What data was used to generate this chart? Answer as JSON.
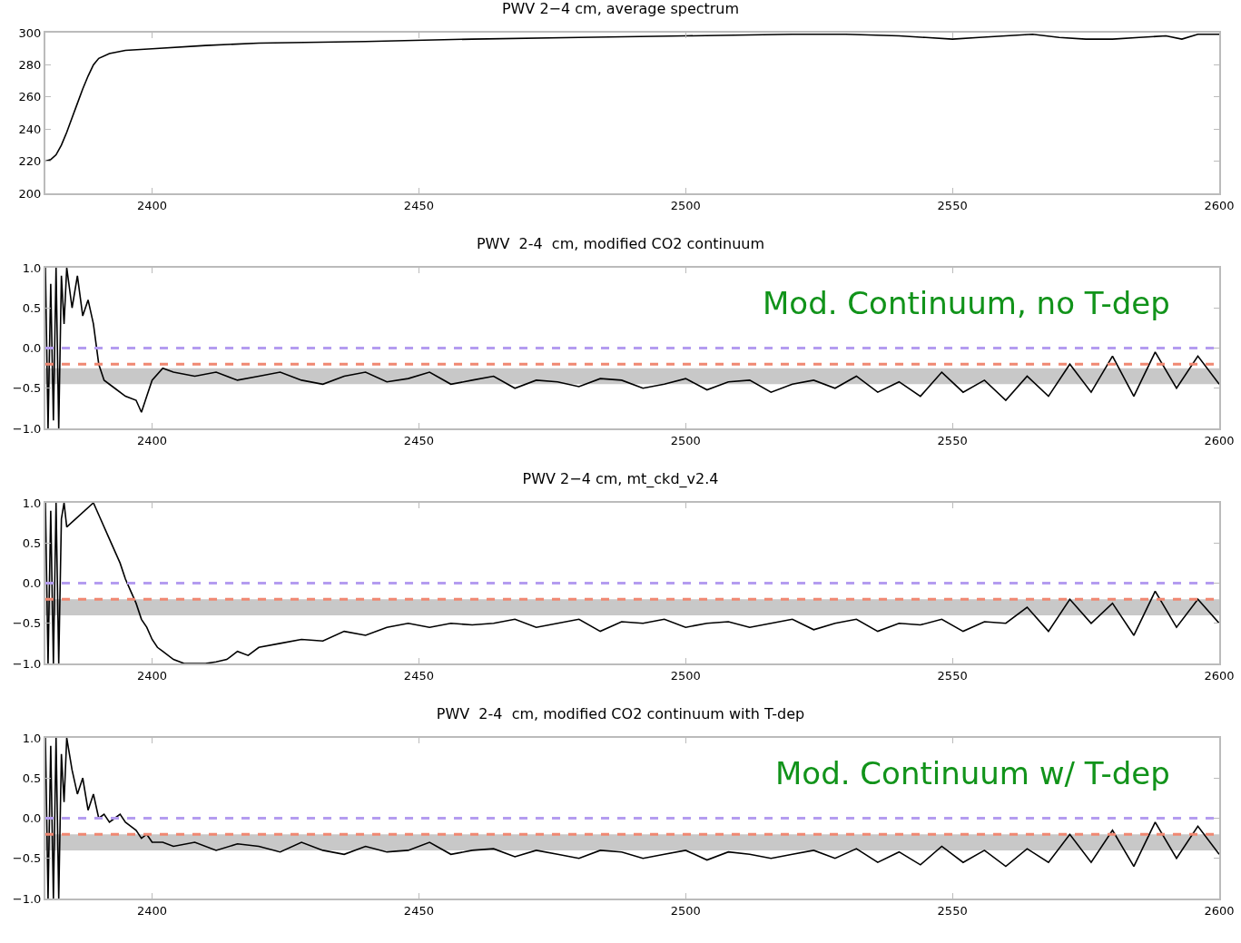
{
  "chart_data": [
    {
      "type": "line",
      "title": "PWV 2−4 cm, average spectrum",
      "x": [
        2380,
        2381,
        2382,
        2383,
        2384,
        2385,
        2386,
        2387,
        2388,
        2389,
        2390,
        2392,
        2395,
        2400,
        2410,
        2420,
        2440,
        2460,
        2480,
        2500,
        2520,
        2530,
        2540,
        2545,
        2550,
        2555,
        2560,
        2565,
        2570,
        2575,
        2580,
        2585,
        2590,
        2593,
        2596,
        2600
      ],
      "series": [
        {
          "color": "#000000",
          "values": [
            220,
            221,
            224,
            230,
            238,
            247,
            256,
            265,
            273,
            280,
            284,
            287,
            289,
            290,
            292,
            293.5,
            294.5,
            296,
            297,
            298,
            299,
            299,
            298,
            297,
            296,
            297,
            298,
            299,
            297,
            296,
            296,
            297,
            298,
            296,
            299,
            299
          ]
        }
      ],
      "xlim": [
        2380,
        2600
      ],
      "xticks": [
        2400,
        2450,
        2500,
        2550,
        2600
      ],
      "ylim": [
        200,
        300
      ],
      "yticks": [
        200,
        220,
        240,
        260,
        280,
        300
      ],
      "grid": false,
      "marker": "none",
      "line_style": "solid"
    },
    {
      "type": "line",
      "title": "PWV  2-4  cm, modified CO2 continuum",
      "annotations": [
        "Mod. Continuum, no T-dep"
      ],
      "x": [
        2380,
        2380.5,
        2381,
        2381.5,
        2382,
        2382.5,
        2383,
        2383.5,
        2384,
        2385,
        2386,
        2387,
        2388,
        2389,
        2390,
        2391,
        2393,
        2395,
        2397,
        2398,
        2399,
        2400,
        2402,
        2404,
        2408,
        2412,
        2416,
        2420,
        2424,
        2428,
        2432,
        2436,
        2440,
        2444,
        2448,
        2452,
        2456,
        2460,
        2464,
        2468,
        2472,
        2476,
        2480,
        2484,
        2488,
        2492,
        2496,
        2500,
        2504,
        2508,
        2512,
        2516,
        2520,
        2524,
        2528,
        2532,
        2536,
        2540,
        2544,
        2548,
        2552,
        2556,
        2560,
        2564,
        2568,
        2572,
        2576,
        2580,
        2584,
        2588,
        2592,
        2596,
        2600
      ],
      "series": [
        {
          "color": "#000000",
          "values": [
            1,
            -1,
            0.8,
            -0.9,
            1,
            -1,
            0.9,
            0.3,
            1,
            0.5,
            0.9,
            0.4,
            0.6,
            0.3,
            -0.2,
            -0.4,
            -0.5,
            -0.6,
            -0.65,
            -0.8,
            -0.6,
            -0.4,
            -0.25,
            -0.3,
            -0.35,
            -0.3,
            -0.4,
            -0.35,
            -0.3,
            -0.4,
            -0.45,
            -0.35,
            -0.3,
            -0.42,
            -0.38,
            -0.3,
            -0.45,
            -0.4,
            -0.35,
            -0.5,
            -0.4,
            -0.42,
            -0.48,
            -0.38,
            -0.4,
            -0.5,
            -0.45,
            -0.38,
            -0.52,
            -0.42,
            -0.4,
            -0.55,
            -0.45,
            -0.4,
            -0.5,
            -0.35,
            -0.55,
            -0.42,
            -0.6,
            -0.3,
            -0.55,
            -0.4,
            -0.65,
            -0.35,
            -0.6,
            -0.2,
            -0.55,
            -0.1,
            -0.6,
            -0.05,
            -0.5,
            -0.1,
            -0.45
          ]
        }
      ],
      "ref_lines": [
        {
          "axis": "y",
          "value": 0,
          "color": "#b49cf0",
          "line_style": "dashed"
        },
        {
          "axis": "y",
          "value": -0.2,
          "color": "#f08872",
          "line_style": "dashed"
        }
      ],
      "bands": [
        {
          "axis": "y",
          "from": -0.45,
          "to": -0.25,
          "color": "#c8c8c8"
        }
      ],
      "xlim": [
        2380,
        2600
      ],
      "xticks": [
        2400,
        2450,
        2500,
        2550,
        2600
      ],
      "ylim": [
        -1,
        1
      ],
      "yticks": [
        {
          "value": -1,
          "label": "−1.0"
        },
        {
          "value": -0.5,
          "label": "−0.5"
        },
        {
          "value": 0,
          "label": "0.0"
        },
        {
          "value": 0.5,
          "label": "0.5"
        },
        {
          "value": 1,
          "label": "1.0"
        }
      ],
      "grid": false,
      "marker": "none",
      "line_style": "solid"
    },
    {
      "type": "line",
      "title": "PWV 2−4 cm, mt_ckd_v2.4",
      "x": [
        2380,
        2380.5,
        2381,
        2381.5,
        2382,
        2382.5,
        2383,
        2383.5,
        2384,
        2389,
        2390,
        2392,
        2394,
        2395,
        2396,
        2397,
        2398,
        2399,
        2400,
        2401,
        2402,
        2404,
        2406,
        2408,
        2410,
        2412,
        2414,
        2416,
        2418,
        2420,
        2424,
        2428,
        2432,
        2436,
        2440,
        2444,
        2448,
        2452,
        2456,
        2460,
        2464,
        2468,
        2472,
        2476,
        2480,
        2484,
        2488,
        2492,
        2496,
        2500,
        2504,
        2508,
        2512,
        2516,
        2520,
        2524,
        2528,
        2532,
        2536,
        2540,
        2544,
        2548,
        2552,
        2556,
        2560,
        2564,
        2568,
        2572,
        2576,
        2580,
        2584,
        2588,
        2592,
        2596,
        2600
      ],
      "series": [
        {
          "color": "#000000",
          "values": [
            1,
            -1,
            0.9,
            -1,
            1,
            -1,
            0.8,
            1,
            0.7,
            1,
            0.85,
            0.55,
            0.25,
            0.05,
            -0.1,
            -0.25,
            -0.45,
            -0.55,
            -0.7,
            -0.8,
            -0.85,
            -0.95,
            -1,
            -1,
            -1,
            -0.98,
            -0.95,
            -0.85,
            -0.9,
            -0.8,
            -0.75,
            -0.7,
            -0.72,
            -0.6,
            -0.65,
            -0.55,
            -0.5,
            -0.55,
            -0.5,
            -0.52,
            -0.5,
            -0.45,
            -0.55,
            -0.5,
            -0.45,
            -0.6,
            -0.48,
            -0.5,
            -0.45,
            -0.55,
            -0.5,
            -0.48,
            -0.55,
            -0.5,
            -0.45,
            -0.58,
            -0.5,
            -0.45,
            -0.6,
            -0.5,
            -0.52,
            -0.45,
            -0.6,
            -0.48,
            -0.5,
            -0.3,
            -0.6,
            -0.2,
            -0.5,
            -0.25,
            -0.65,
            -0.1,
            -0.55,
            -0.2,
            -0.5
          ]
        }
      ],
      "ref_lines": [
        {
          "axis": "y",
          "value": 0,
          "color": "#b49cf0",
          "line_style": "dashed"
        },
        {
          "axis": "y",
          "value": -0.2,
          "color": "#f08872",
          "line_style": "dashed"
        }
      ],
      "bands": [
        {
          "axis": "y",
          "from": -0.4,
          "to": -0.2,
          "color": "#c8c8c8"
        }
      ],
      "xlim": [
        2380,
        2600
      ],
      "xticks": [
        2400,
        2450,
        2500,
        2550,
        2600
      ],
      "ylim": [
        -1,
        1
      ],
      "yticks": [
        {
          "value": -1,
          "label": "−1.0"
        },
        {
          "value": -0.5,
          "label": "−0.5"
        },
        {
          "value": 0,
          "label": "0.0"
        },
        {
          "value": 0.5,
          "label": "0.5"
        },
        {
          "value": 1,
          "label": "1.0"
        }
      ],
      "grid": false,
      "marker": "none",
      "line_style": "solid"
    },
    {
      "type": "line",
      "title": "PWV  2-4  cm, modified CO2 continuum with T-dep",
      "annotations": [
        "Mod. Continuum w/ T-dep"
      ],
      "x": [
        2380,
        2380.5,
        2381,
        2381.5,
        2382,
        2382.5,
        2383,
        2383.5,
        2384,
        2385,
        2386,
        2387,
        2388,
        2389,
        2390,
        2391,
        2392,
        2393,
        2394,
        2395,
        2396,
        2397,
        2398,
        2399,
        2400,
        2402,
        2404,
        2408,
        2412,
        2416,
        2420,
        2424,
        2428,
        2432,
        2436,
        2440,
        2444,
        2448,
        2452,
        2456,
        2460,
        2464,
        2468,
        2472,
        2476,
        2480,
        2484,
        2488,
        2492,
        2496,
        2500,
        2504,
        2508,
        2512,
        2516,
        2520,
        2524,
        2528,
        2532,
        2536,
        2540,
        2544,
        2548,
        2552,
        2556,
        2560,
        2564,
        2568,
        2572,
        2576,
        2580,
        2584,
        2588,
        2592,
        2596,
        2600
      ],
      "series": [
        {
          "color": "#000000",
          "values": [
            1,
            -1,
            0.9,
            -1,
            1,
            -1,
            0.8,
            0.2,
            1,
            0.6,
            0.3,
            0.5,
            0.1,
            0.3,
            0,
            0.05,
            -0.05,
            0,
            0.05,
            -0.05,
            -0.1,
            -0.15,
            -0.25,
            -0.2,
            -0.3,
            -0.3,
            -0.35,
            -0.3,
            -0.4,
            -0.32,
            -0.35,
            -0.42,
            -0.3,
            -0.4,
            -0.45,
            -0.35,
            -0.42,
            -0.4,
            -0.3,
            -0.45,
            -0.4,
            -0.38,
            -0.48,
            -0.4,
            -0.45,
            -0.5,
            -0.4,
            -0.42,
            -0.5,
            -0.45,
            -0.4,
            -0.52,
            -0.42,
            -0.45,
            -0.5,
            -0.45,
            -0.4,
            -0.5,
            -0.38,
            -0.55,
            -0.42,
            -0.58,
            -0.35,
            -0.55,
            -0.4,
            -0.6,
            -0.38,
            -0.55,
            -0.2,
            -0.55,
            -0.15,
            -0.6,
            -0.05,
            -0.5,
            -0.1,
            -0.45
          ]
        }
      ],
      "ref_lines": [
        {
          "axis": "y",
          "value": 0,
          "color": "#b49cf0",
          "line_style": "dashed"
        },
        {
          "axis": "y",
          "value": -0.2,
          "color": "#f08872",
          "line_style": "dashed"
        }
      ],
      "bands": [
        {
          "axis": "y",
          "from": -0.4,
          "to": -0.2,
          "color": "#c8c8c8"
        }
      ],
      "xlim": [
        2380,
        2600
      ],
      "xticks": [
        2400,
        2450,
        2500,
        2550,
        2600
      ],
      "ylim": [
        -1,
        1
      ],
      "yticks": [
        {
          "value": -1,
          "label": "−1.0"
        },
        {
          "value": -0.5,
          "label": "−0.5"
        },
        {
          "value": 0,
          "label": "0.0"
        },
        {
          "value": 0.5,
          "label": "0.5"
        },
        {
          "value": 1,
          "label": "1.0"
        }
      ],
      "grid": false,
      "marker": "none",
      "line_style": "solid"
    }
  ]
}
